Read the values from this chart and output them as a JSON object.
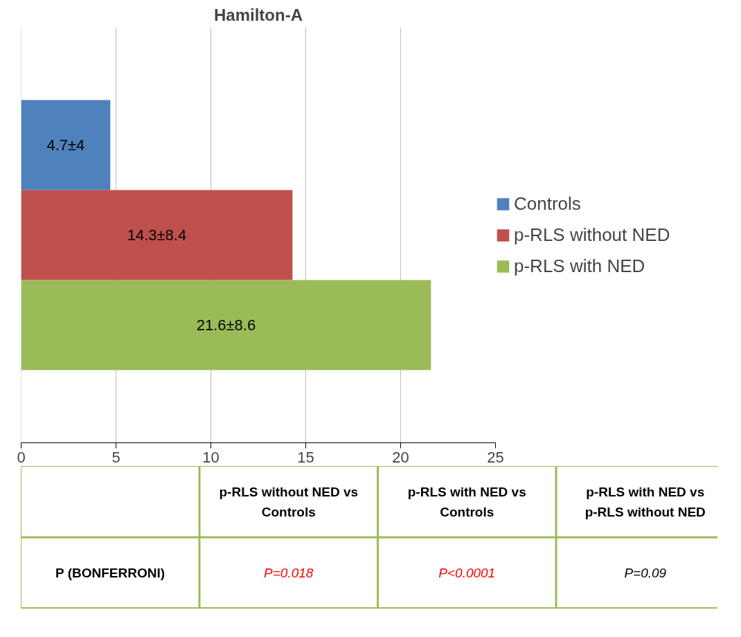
{
  "chart_data": {
    "type": "bar",
    "orientation": "horizontal",
    "title": "Hamilton-A",
    "categories": [
      null
    ],
    "series": [
      {
        "name": "Controls",
        "color": "#4f81bd",
        "values": [
          4.7
        ],
        "value_labels": [
          "4.7±4"
        ]
      },
      {
        "name": "p-RLS without NED",
        "color": "#c0504d",
        "values": [
          14.3
        ],
        "value_labels": [
          "14.3±8.4"
        ]
      },
      {
        "name": "p-RLS with NED",
        "color": "#9bbb59",
        "values": [
          21.6
        ],
        "value_labels": [
          "21.6±8.6"
        ]
      }
    ],
    "xlim": [
      0,
      25
    ],
    "xticks": [
      0,
      5,
      10,
      15,
      20,
      25
    ],
    "grid": "x",
    "legend": "right",
    "annotations": [
      "p-RLS without NED vs Controls",
      "p-RLS with NED vs Controls",
      "p-RLS with NED vs p-RLS without NED",
      "P (BONFERRONI)",
      "P=0.018",
      "P<0.0001",
      "P=0.09"
    ]
  }
}
